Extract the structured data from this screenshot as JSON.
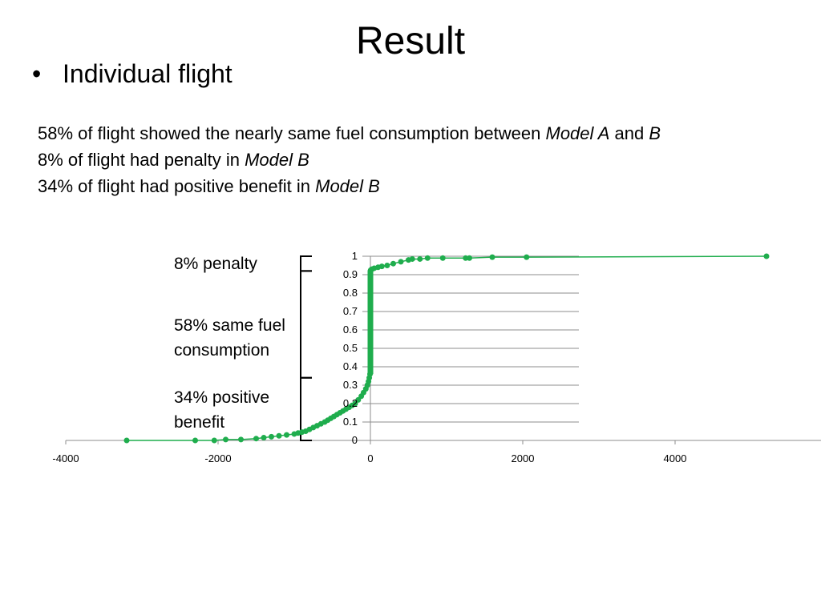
{
  "slide": {
    "title": "Result",
    "bullet": "Individual flight",
    "lines": [
      [
        {
          "t": "58% of flight showed the nearly same fuel consumption between "
        },
        {
          "t": "Model A",
          "i": true
        },
        {
          "t": " and "
        },
        {
          "t": "B",
          "i": true
        }
      ],
      [
        {
          "t": "8% of flight had penalty in "
        },
        {
          "t": "Model B",
          "i": true
        }
      ],
      [
        {
          "t": "34% of flight had positive benefit in "
        },
        {
          "t": "Model B",
          "i": true
        }
      ]
    ],
    "annotations": {
      "penalty": "8% penalty",
      "same_line1": "58% same fuel",
      "same_line2": "consumption",
      "benefit_line1": "34% positive",
      "benefit_line2": "benefit"
    }
  },
  "chart_data": {
    "type": "scatter",
    "title": "",
    "xlabel": "",
    "ylabel": "",
    "xlim": [
      -4000,
      6000
    ],
    "ylim": [
      0,
      1
    ],
    "x_ticks": [
      "-4000",
      "-2000",
      "0",
      "2000",
      "4000"
    ],
    "y_ticks": [
      "0",
      "0.1",
      "0.2",
      "0.3",
      "0.4",
      "0.5",
      "0.6",
      "0.7",
      "0.8",
      "0.9",
      "1"
    ],
    "grid": "horizontal",
    "color": "#1fad4d",
    "series": [
      {
        "x": [
          -3200,
          -2300,
          -2050,
          -1900,
          -1700,
          -1500,
          -1400,
          -1300,
          -1200,
          -1100,
          -1000,
          -950,
          -900,
          -850,
          -800,
          -750,
          -700,
          -650,
          -600,
          -560,
          -520,
          -480,
          -440,
          -400,
          -360,
          -320,
          -280,
          -240,
          -200,
          -160,
          -120,
          -90,
          -60,
          -40,
          -25,
          -15,
          -5,
          0,
          0,
          0,
          0,
          0,
          0,
          0,
          0,
          0,
          0,
          0,
          0,
          5,
          20,
          50,
          100,
          150,
          220,
          300,
          400,
          500,
          550,
          650,
          750,
          950,
          1250,
          1300,
          1600,
          2050,
          5200
        ],
        "y": [
          0.0,
          0.0,
          0.0,
          0.005,
          0.005,
          0.01,
          0.015,
          0.02,
          0.025,
          0.03,
          0.035,
          0.04,
          0.045,
          0.05,
          0.06,
          0.07,
          0.08,
          0.09,
          0.1,
          0.11,
          0.12,
          0.13,
          0.14,
          0.15,
          0.16,
          0.17,
          0.18,
          0.19,
          0.2,
          0.22,
          0.24,
          0.26,
          0.28,
          0.3,
          0.32,
          0.34,
          0.36,
          0.4,
          0.45,
          0.5,
          0.55,
          0.6,
          0.65,
          0.7,
          0.75,
          0.8,
          0.85,
          0.9,
          0.92,
          0.925,
          0.93,
          0.935,
          0.94,
          0.945,
          0.95,
          0.96,
          0.97,
          0.98,
          0.985,
          0.985,
          0.99,
          0.99,
          0.99,
          0.99,
          0.995,
          0.995,
          1.0
        ]
      }
    ]
  }
}
